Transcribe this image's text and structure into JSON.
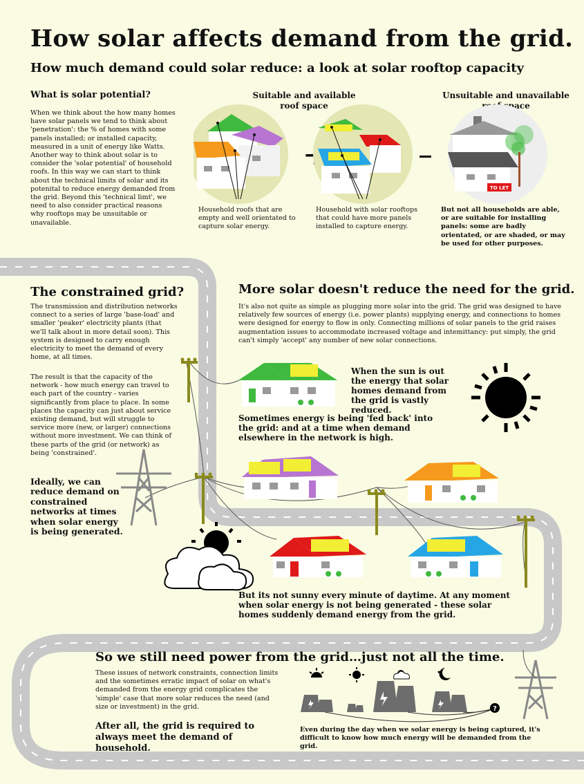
{
  "title": "How solar affects demand from the grid.",
  "subtitle": "How much demand could solar reduce: a look at solar rooftop capacity",
  "potential": {
    "heading": "What is solar potential?",
    "body": "When we think about the how many homes have solar panels we tend to think about 'penetration': the % of homes with some panels installed; or installed capacity, measured in a unit of energy like Watts. Another way to think about solar is to consider the 'solar potential' of household roofs. In this way we can start to think about the technical limits of solar and its potenital to reduce energy demanded from the grid. Beyond this 'technical limt', we need to also consider practical reasons why rooftops may be unsuitable or unavailable."
  },
  "roofs": {
    "suitable_heading": "Suitable and available roof space",
    "unsuitable_heading": "Unsuitable and unavailable roof space",
    "plus": "+",
    "minus": "–",
    "caption_empty": "Household roofs that are empty and well orientated to capture solar energy.",
    "caption_more": "Household with solar rooftops that could have more panels installed to capture energy.",
    "caption_unable": "But not all households are able, or are suitable for installing panels: some are badly orientated, or are shaded, or may be used for other purposes.",
    "sign_text": "TO LET"
  },
  "constrained": {
    "heading": "The constrained grid?",
    "body1": "The transmission and distribution networks connect to a series of large 'base-load' and smaller 'peaker' electricity plants (that we'll talk about in more detail soon). This system is designed to carry enough electricity to meet the demand of every home, at all times.",
    "body2": "The result is that the capacity of the network - how much energy can travel to each part of the country - varies significantly from place to place. In some places the capacity can just about service existing demand, but will struggle to service more (new, or larger) connections without more investment. We can think of these parts of the grid (or network) as being 'constrained'.",
    "ideally": "Ideally, we can reduce demand on constrained networks at times when solar energy is being generated."
  },
  "more_solar": {
    "heading": "More solar doesn't reduce the need for the grid.",
    "body": "It's also not quite as simple as plugging more solar into the grid. The grid was designed to have relatively few sources of energy (i.e. power plants) supplying energy, and connections to homes were designed for energy to flow in only. Connecting millions of solar panels to the grid raises augmentation issues to accommodate increased voltage and intemittancy: put simply, the grid can't simply 'accept' any number of new solar connections.",
    "sun_out": "When the sun is out the energy that solar homes demand from the grid is vastly reduced.",
    "fed_back": "Sometimes energy is being 'fed back' into the grid: and at a time when demand elsewhere in the network is high.",
    "not_sunny": "But its not sunny every minute of daytime. At any moment when solar energy is not being generated - these solar homes suddenly demand energy from the grid."
  },
  "still_need": {
    "heading": "So we still need power from the grid…just not all the time.",
    "body": "These issues of network constraints, connection limits and the sometimes erratic impact of solar on what's demanded from the energy grid complicates the 'simple' case that more solar reduces the need (and size or investment) in the grid.",
    "after_all": "After all, the grid is required to always meet the demand of household.",
    "even_during": "Even during the day when we solar energy is being captured, it's difficult to know how much energy will be demanded from the grid.",
    "question": "?"
  },
  "colors": {
    "background": "#f9fbe3",
    "road": "#c8c8c8",
    "green_roof": "#3fba3f",
    "purple_roof": "#b774d1",
    "orange_roof": "#f59a1c",
    "red_roof": "#e01919",
    "blue_roof": "#27a6e5",
    "panel": "#f2ee33",
    "pole": "#8a8a1e",
    "plant": "#6d6d6d"
  },
  "icons": [
    "sun-icon",
    "cloud-sun-icon",
    "moon-icon",
    "power-plant-icon",
    "pylon-icon",
    "utility-pole-icon",
    "house-icon"
  ]
}
